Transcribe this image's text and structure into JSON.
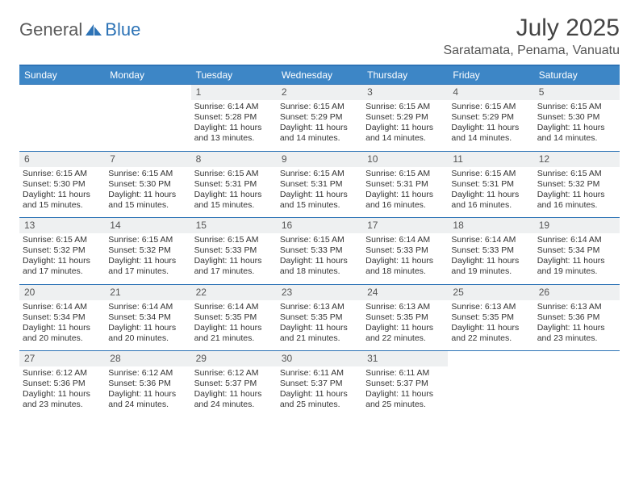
{
  "brand": {
    "text_a": "General",
    "text_b": "Blue"
  },
  "title": "July 2025",
  "location": "Saratamata, Penama, Vanuatu",
  "colors": {
    "accent": "#2d73b6",
    "header_bg": "#3d86c6",
    "daynum_bg": "#eef0f1",
    "text": "#333333"
  },
  "weekdays": [
    "Sunday",
    "Monday",
    "Tuesday",
    "Wednesday",
    "Thursday",
    "Friday",
    "Saturday"
  ],
  "weeks": [
    [
      null,
      null,
      {
        "n": "1",
        "sr": "Sunrise: 6:14 AM",
        "ss": "Sunset: 5:28 PM",
        "d1": "Daylight: 11 hours",
        "d2": "and 13 minutes."
      },
      {
        "n": "2",
        "sr": "Sunrise: 6:15 AM",
        "ss": "Sunset: 5:29 PM",
        "d1": "Daylight: 11 hours",
        "d2": "and 14 minutes."
      },
      {
        "n": "3",
        "sr": "Sunrise: 6:15 AM",
        "ss": "Sunset: 5:29 PM",
        "d1": "Daylight: 11 hours",
        "d2": "and 14 minutes."
      },
      {
        "n": "4",
        "sr": "Sunrise: 6:15 AM",
        "ss": "Sunset: 5:29 PM",
        "d1": "Daylight: 11 hours",
        "d2": "and 14 minutes."
      },
      {
        "n": "5",
        "sr": "Sunrise: 6:15 AM",
        "ss": "Sunset: 5:30 PM",
        "d1": "Daylight: 11 hours",
        "d2": "and 14 minutes."
      }
    ],
    [
      {
        "n": "6",
        "sr": "Sunrise: 6:15 AM",
        "ss": "Sunset: 5:30 PM",
        "d1": "Daylight: 11 hours",
        "d2": "and 15 minutes."
      },
      {
        "n": "7",
        "sr": "Sunrise: 6:15 AM",
        "ss": "Sunset: 5:30 PM",
        "d1": "Daylight: 11 hours",
        "d2": "and 15 minutes."
      },
      {
        "n": "8",
        "sr": "Sunrise: 6:15 AM",
        "ss": "Sunset: 5:31 PM",
        "d1": "Daylight: 11 hours",
        "d2": "and 15 minutes."
      },
      {
        "n": "9",
        "sr": "Sunrise: 6:15 AM",
        "ss": "Sunset: 5:31 PM",
        "d1": "Daylight: 11 hours",
        "d2": "and 15 minutes."
      },
      {
        "n": "10",
        "sr": "Sunrise: 6:15 AM",
        "ss": "Sunset: 5:31 PM",
        "d1": "Daylight: 11 hours",
        "d2": "and 16 minutes."
      },
      {
        "n": "11",
        "sr": "Sunrise: 6:15 AM",
        "ss": "Sunset: 5:31 PM",
        "d1": "Daylight: 11 hours",
        "d2": "and 16 minutes."
      },
      {
        "n": "12",
        "sr": "Sunrise: 6:15 AM",
        "ss": "Sunset: 5:32 PM",
        "d1": "Daylight: 11 hours",
        "d2": "and 16 minutes."
      }
    ],
    [
      {
        "n": "13",
        "sr": "Sunrise: 6:15 AM",
        "ss": "Sunset: 5:32 PM",
        "d1": "Daylight: 11 hours",
        "d2": "and 17 minutes."
      },
      {
        "n": "14",
        "sr": "Sunrise: 6:15 AM",
        "ss": "Sunset: 5:32 PM",
        "d1": "Daylight: 11 hours",
        "d2": "and 17 minutes."
      },
      {
        "n": "15",
        "sr": "Sunrise: 6:15 AM",
        "ss": "Sunset: 5:33 PM",
        "d1": "Daylight: 11 hours",
        "d2": "and 17 minutes."
      },
      {
        "n": "16",
        "sr": "Sunrise: 6:15 AM",
        "ss": "Sunset: 5:33 PM",
        "d1": "Daylight: 11 hours",
        "d2": "and 18 minutes."
      },
      {
        "n": "17",
        "sr": "Sunrise: 6:14 AM",
        "ss": "Sunset: 5:33 PM",
        "d1": "Daylight: 11 hours",
        "d2": "and 18 minutes."
      },
      {
        "n": "18",
        "sr": "Sunrise: 6:14 AM",
        "ss": "Sunset: 5:33 PM",
        "d1": "Daylight: 11 hours",
        "d2": "and 19 minutes."
      },
      {
        "n": "19",
        "sr": "Sunrise: 6:14 AM",
        "ss": "Sunset: 5:34 PM",
        "d1": "Daylight: 11 hours",
        "d2": "and 19 minutes."
      }
    ],
    [
      {
        "n": "20",
        "sr": "Sunrise: 6:14 AM",
        "ss": "Sunset: 5:34 PM",
        "d1": "Daylight: 11 hours",
        "d2": "and 20 minutes."
      },
      {
        "n": "21",
        "sr": "Sunrise: 6:14 AM",
        "ss": "Sunset: 5:34 PM",
        "d1": "Daylight: 11 hours",
        "d2": "and 20 minutes."
      },
      {
        "n": "22",
        "sr": "Sunrise: 6:14 AM",
        "ss": "Sunset: 5:35 PM",
        "d1": "Daylight: 11 hours",
        "d2": "and 21 minutes."
      },
      {
        "n": "23",
        "sr": "Sunrise: 6:13 AM",
        "ss": "Sunset: 5:35 PM",
        "d1": "Daylight: 11 hours",
        "d2": "and 21 minutes."
      },
      {
        "n": "24",
        "sr": "Sunrise: 6:13 AM",
        "ss": "Sunset: 5:35 PM",
        "d1": "Daylight: 11 hours",
        "d2": "and 22 minutes."
      },
      {
        "n": "25",
        "sr": "Sunrise: 6:13 AM",
        "ss": "Sunset: 5:35 PM",
        "d1": "Daylight: 11 hours",
        "d2": "and 22 minutes."
      },
      {
        "n": "26",
        "sr": "Sunrise: 6:13 AM",
        "ss": "Sunset: 5:36 PM",
        "d1": "Daylight: 11 hours",
        "d2": "and 23 minutes."
      }
    ],
    [
      {
        "n": "27",
        "sr": "Sunrise: 6:12 AM",
        "ss": "Sunset: 5:36 PM",
        "d1": "Daylight: 11 hours",
        "d2": "and 23 minutes."
      },
      {
        "n": "28",
        "sr": "Sunrise: 6:12 AM",
        "ss": "Sunset: 5:36 PM",
        "d1": "Daylight: 11 hours",
        "d2": "and 24 minutes."
      },
      {
        "n": "29",
        "sr": "Sunrise: 6:12 AM",
        "ss": "Sunset: 5:37 PM",
        "d1": "Daylight: 11 hours",
        "d2": "and 24 minutes."
      },
      {
        "n": "30",
        "sr": "Sunrise: 6:11 AM",
        "ss": "Sunset: 5:37 PM",
        "d1": "Daylight: 11 hours",
        "d2": "and 25 minutes."
      },
      {
        "n": "31",
        "sr": "Sunrise: 6:11 AM",
        "ss": "Sunset: 5:37 PM",
        "d1": "Daylight: 11 hours",
        "d2": "and 25 minutes."
      },
      null,
      null
    ]
  ]
}
